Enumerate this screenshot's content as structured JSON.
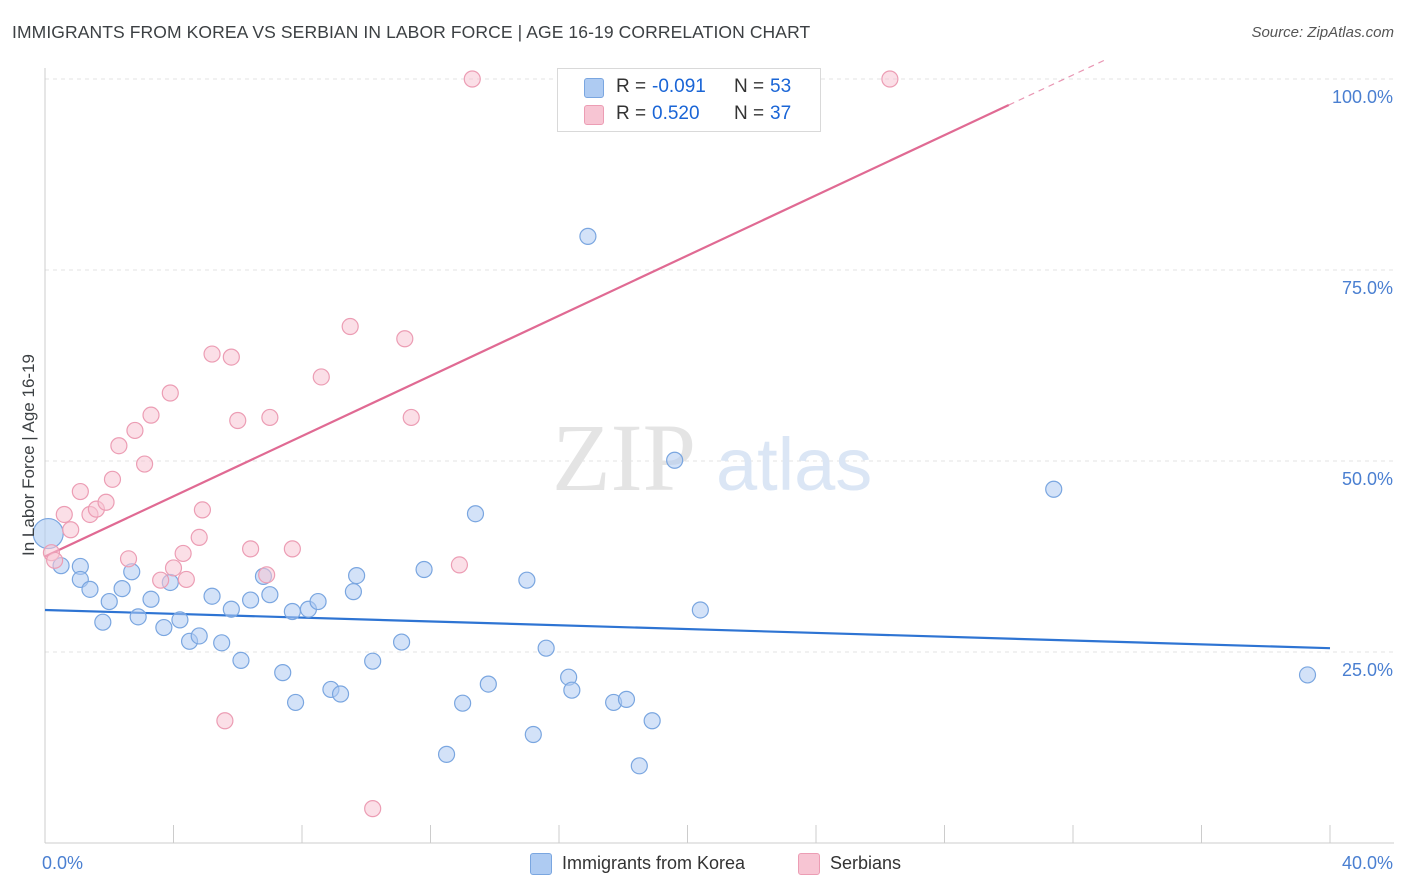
{
  "title": "IMMIGRANTS FROM KOREA VS SERBIAN IN LABOR FORCE | AGE 16-19 CORRELATION CHART",
  "source": "Source: ZipAtlas.com",
  "watermark": {
    "zip": "ZIP",
    "atlas": "atlas"
  },
  "legend": {
    "korea": {
      "r_label": "R =",
      "r_value": "-0.091",
      "n_label": "N =",
      "n_value": "53"
    },
    "serbian": {
      "r_label": "R =",
      "r_value": "0.520",
      "n_label": "N =",
      "n_value": "37"
    }
  },
  "bottom_legend": {
    "korea": "Immigrants from Korea",
    "serbian": "Serbians"
  },
  "colors": {
    "korea_fill": "#aecbf2",
    "korea_stroke": "#7aa6e0",
    "korea_line": "#2e74d3",
    "serbian_fill": "#f7c5d3",
    "serbian_stroke": "#ec9db4",
    "serbian_line": "#e06a93",
    "tick_text": "#4a7fd1",
    "grid": "#e3e3e3"
  },
  "chart_data": {
    "type": "scatter",
    "title": "IMMIGRANTS FROM KOREA VS SERBIAN IN LABOR FORCE | AGE 16-19 CORRELATION CHART",
    "xlabel": "",
    "ylabel": "In Labor Force | Age 16-19",
    "xlim": [
      0,
      40
    ],
    "ylim": [
      0,
      100
    ],
    "x_tick_labels": [
      {
        "value": 0,
        "label": "0.0%"
      },
      {
        "value": 40,
        "label": "40.0%"
      }
    ],
    "y_tick_labels": [
      {
        "value": 25,
        "label": "25.0%"
      },
      {
        "value": 50,
        "label": "50.0%"
      },
      {
        "value": 75,
        "label": "75.0%"
      },
      {
        "value": 100,
        "label": "100.0%"
      }
    ],
    "series": [
      {
        "name": "Immigrants from Korea",
        "key": "korea",
        "r": -0.091,
        "n": 53,
        "trend": {
          "x0": 0,
          "y0": 30.5,
          "x1": 40,
          "y1": 25.5,
          "dashed_from": null
        },
        "points": [
          [
            0.1,
            40.5
          ],
          [
            0.5,
            36.3
          ],
          [
            1.1,
            36.2
          ],
          [
            1.1,
            34.5
          ],
          [
            1.4,
            33.2
          ],
          [
            1.8,
            28.9
          ],
          [
            2.0,
            31.6
          ],
          [
            2.4,
            33.3
          ],
          [
            2.7,
            35.5
          ],
          [
            2.9,
            29.6
          ],
          [
            3.3,
            31.9
          ],
          [
            3.7,
            28.2
          ],
          [
            3.9,
            34.1
          ],
          [
            4.2,
            29.2
          ],
          [
            4.5,
            26.4
          ],
          [
            4.8,
            27.1
          ],
          [
            5.2,
            32.3
          ],
          [
            5.5,
            26.2
          ],
          [
            5.8,
            30.6
          ],
          [
            6.1,
            23.9
          ],
          [
            6.4,
            31.8
          ],
          [
            6.8,
            34.9
          ],
          [
            7.0,
            32.5
          ],
          [
            7.4,
            22.3
          ],
          [
            7.7,
            30.3
          ],
          [
            7.8,
            18.4
          ],
          [
            8.2,
            30.6
          ],
          [
            8.5,
            31.6
          ],
          [
            8.9,
            20.1
          ],
          [
            9.2,
            19.5
          ],
          [
            9.6,
            32.9
          ],
          [
            9.7,
            35.0
          ],
          [
            10.2,
            23.8
          ],
          [
            11.1,
            26.3
          ],
          [
            11.8,
            35.8
          ],
          [
            12.5,
            11.6
          ],
          [
            13.0,
            18.3
          ],
          [
            13.4,
            43.1
          ],
          [
            13.8,
            20.8
          ],
          [
            15.0,
            34.4
          ],
          [
            15.2,
            14.2
          ],
          [
            15.6,
            25.5
          ],
          [
            16.3,
            21.7
          ],
          [
            16.4,
            20.0
          ],
          [
            16.9,
            79.4
          ],
          [
            17.7,
            18.4
          ],
          [
            18.1,
            18.8
          ],
          [
            18.5,
            10.1
          ],
          [
            18.9,
            16.0
          ],
          [
            19.6,
            50.1
          ],
          [
            20.4,
            30.5
          ],
          [
            31.4,
            46.3
          ],
          [
            39.3,
            22.0
          ]
        ]
      },
      {
        "name": "Serbians",
        "key": "serbian",
        "r": 0.52,
        "n": 37,
        "trend": {
          "x0": 0,
          "y0": 37.5,
          "x1": 33.0,
          "y1": 102.5,
          "dashed_from": 30.0
        },
        "points": [
          [
            0.2,
            38.0
          ],
          [
            0.3,
            37.0
          ],
          [
            0.6,
            43.0
          ],
          [
            0.8,
            41.0
          ],
          [
            1.1,
            46.0
          ],
          [
            1.4,
            43.0
          ],
          [
            1.6,
            43.7
          ],
          [
            1.9,
            44.6
          ],
          [
            2.1,
            47.6
          ],
          [
            2.3,
            52.0
          ],
          [
            2.6,
            37.2
          ],
          [
            2.8,
            54.0
          ],
          [
            3.1,
            49.6
          ],
          [
            3.3,
            56.0
          ],
          [
            3.6,
            34.4
          ],
          [
            3.9,
            58.9
          ],
          [
            4.0,
            36.0
          ],
          [
            4.3,
            37.9
          ],
          [
            4.4,
            34.5
          ],
          [
            4.8,
            40.0
          ],
          [
            4.9,
            43.6
          ],
          [
            5.2,
            64.0
          ],
          [
            5.6,
            16.0
          ],
          [
            5.8,
            63.6
          ],
          [
            6.0,
            55.3
          ],
          [
            6.4,
            38.5
          ],
          [
            6.9,
            35.1
          ],
          [
            7.0,
            55.7
          ],
          [
            7.7,
            38.5
          ],
          [
            8.6,
            61.0
          ],
          [
            9.5,
            67.6
          ],
          [
            10.2,
            4.5
          ],
          [
            11.2,
            66.0
          ],
          [
            11.4,
            55.7
          ],
          [
            12.9,
            36.4
          ],
          [
            13.3,
            100.0
          ],
          [
            26.3,
            100.0
          ]
        ]
      }
    ]
  }
}
